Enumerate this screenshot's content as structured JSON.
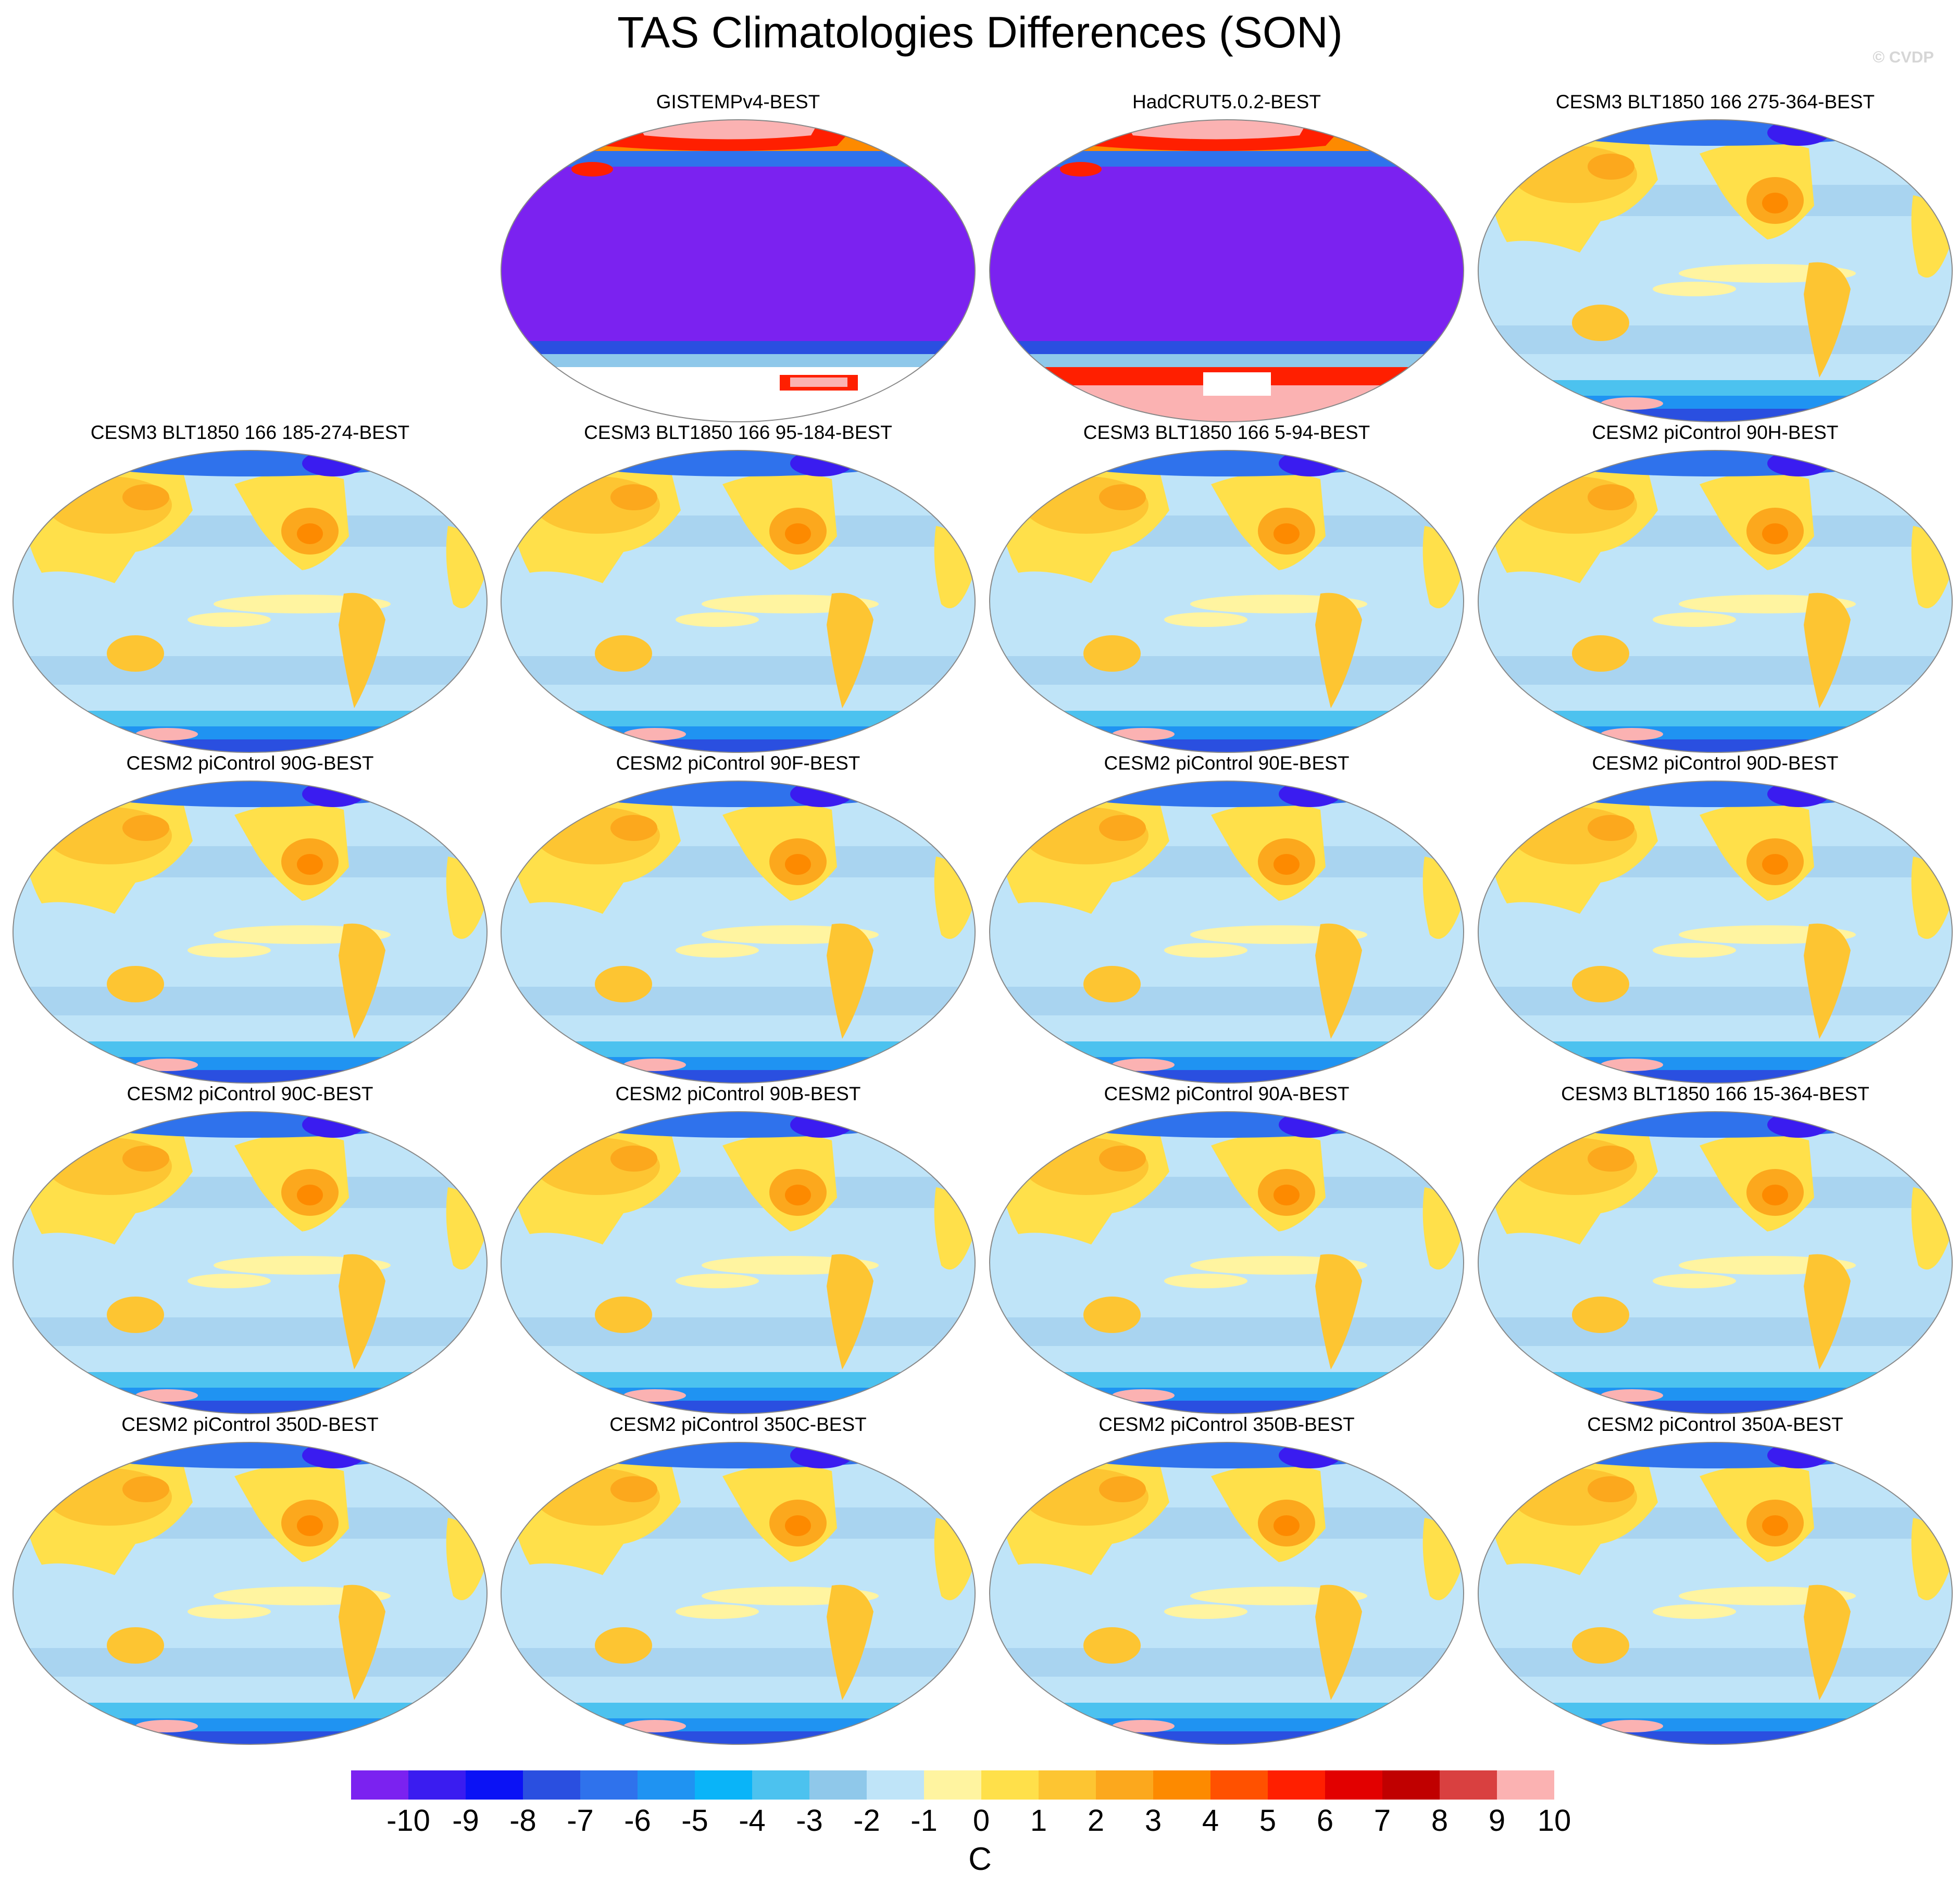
{
  "title": "TAS Climatologies Differences (SON)",
  "credit": "© CVDP",
  "panels": [
    {
      "title": "GISTEMPv4-BEST",
      "style": "obs1"
    },
    {
      "title": "HadCRUT5.0.2-BEST",
      "style": "obs2"
    },
    {
      "title": "CESM3 BLT1850 166 275-364-BEST",
      "style": "model"
    },
    {
      "title": "CESM3 BLT1850 166 185-274-BEST",
      "style": "model"
    },
    {
      "title": "CESM3 BLT1850 166 95-184-BEST",
      "style": "model"
    },
    {
      "title": "CESM3 BLT1850 166 5-94-BEST",
      "style": "model"
    },
    {
      "title": "CESM2 piControl 90H-BEST",
      "style": "model"
    },
    {
      "title": "CESM2 piControl 90G-BEST",
      "style": "model"
    },
    {
      "title": "CESM2 piControl 90F-BEST",
      "style": "model"
    },
    {
      "title": "CESM2 piControl 90E-BEST",
      "style": "model"
    },
    {
      "title": "CESM2 piControl 90D-BEST",
      "style": "model"
    },
    {
      "title": "CESM2 piControl 90C-BEST",
      "style": "model"
    },
    {
      "title": "CESM2 piControl 90B-BEST",
      "style": "model"
    },
    {
      "title": "CESM2 piControl 90A-BEST",
      "style": "model"
    },
    {
      "title": "CESM3 BLT1850 166 15-364-BEST",
      "style": "model"
    },
    {
      "title": "CESM2 piControl 350D-BEST",
      "style": "model"
    },
    {
      "title": "CESM2 piControl 350C-BEST",
      "style": "model"
    },
    {
      "title": "CESM2 piControl 350B-BEST",
      "style": "model"
    },
    {
      "title": "CESM2 piControl 350A-BEST",
      "style": "model"
    }
  ],
  "colorbar": {
    "labels": [
      "-10",
      "-9",
      "-8",
      "-7",
      "-6",
      "-5",
      "-4",
      "-3",
      "-2",
      "-1",
      "0",
      "1",
      "2",
      "3",
      "4",
      "5",
      "6",
      "7",
      "8",
      "9",
      "10"
    ],
    "colors": [
      "#7b22f0",
      "#3a1cf0",
      "#0b12f5",
      "#2a4fe0",
      "#2f72ec",
      "#1f93f2",
      "#0ab4f8",
      "#4cc2ef",
      "#8fc8ea",
      "#bfe4f8",
      "#fff4a0",
      "#ffe04a",
      "#fdc532",
      "#fca81d",
      "#fd8a00",
      "#ff5100",
      "#ff1f00",
      "#e20000",
      "#c00000",
      "#d94040",
      "#fbb2b2"
    ],
    "units": "C"
  }
}
